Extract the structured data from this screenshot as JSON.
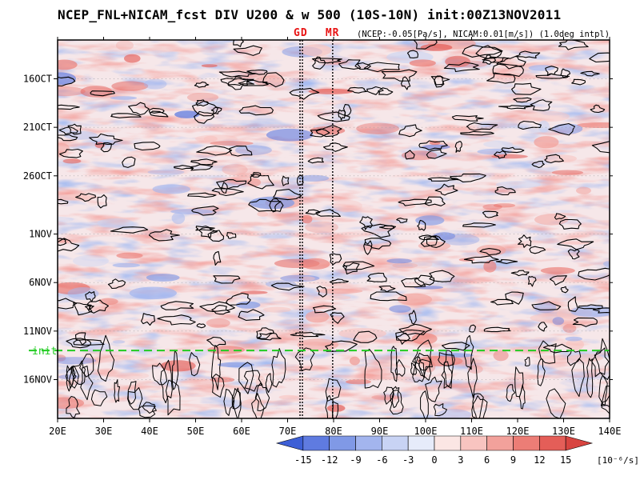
{
  "chart_data": {
    "type": "heatmap",
    "title": "NCEP_FNL+NICAM_fcst DIV U200 & w 500 (10S-10N) init:00Z13NOV2011",
    "note": "(NCEP:-0.05[Pa/s], NICAM:0.01[m/s]) (1.0deg intpl)",
    "xlabel": "",
    "ylabel": "",
    "x_ticks": [
      "20E",
      "30E",
      "40E",
      "50E",
      "60E",
      "70E",
      "80E",
      "90E",
      "100E",
      "110E",
      "120E",
      "130E",
      "140E"
    ],
    "x_range": [
      20,
      140
    ],
    "y_ticks": [
      "16OCT",
      "21OCT",
      "26OCT",
      "1NOV",
      "6NOV",
      "11NOV",
      "16NOV"
    ],
    "y_tick_days": [
      16,
      21,
      26,
      32,
      37,
      42,
      47
    ],
    "y_range_days": [
      12,
      51
    ],
    "init_label": "init",
    "init_day": 44,
    "vertical_markers": [
      {
        "label": "GD",
        "lon": 72.7
      },
      {
        "label": "MR",
        "lon": 79.8
      }
    ],
    "colorbar": {
      "levels": [
        -15,
        -12,
        -9,
        -6,
        -3,
        0,
        3,
        6,
        9,
        12,
        15
      ],
      "labels": [
        "-15",
        "-12",
        "-9",
        "-6",
        "-3",
        "0",
        "3",
        "6",
        "9",
        "12",
        "15"
      ],
      "units": "[10⁻⁶/s]",
      "colors": [
        "#3d5fd6",
        "#5f7be0",
        "#8099e6",
        "#a3b5ee",
        "#c8d3f4",
        "#e6ebfa",
        "#fbe6e4",
        "#f8c4c0",
        "#f2a19b",
        "#ec7d76",
        "#e45e58",
        "#d84440"
      ]
    }
  },
  "colors": {
    "init_line": "#22cc22",
    "marker_text": "#e81414",
    "contour": "#000000"
  }
}
